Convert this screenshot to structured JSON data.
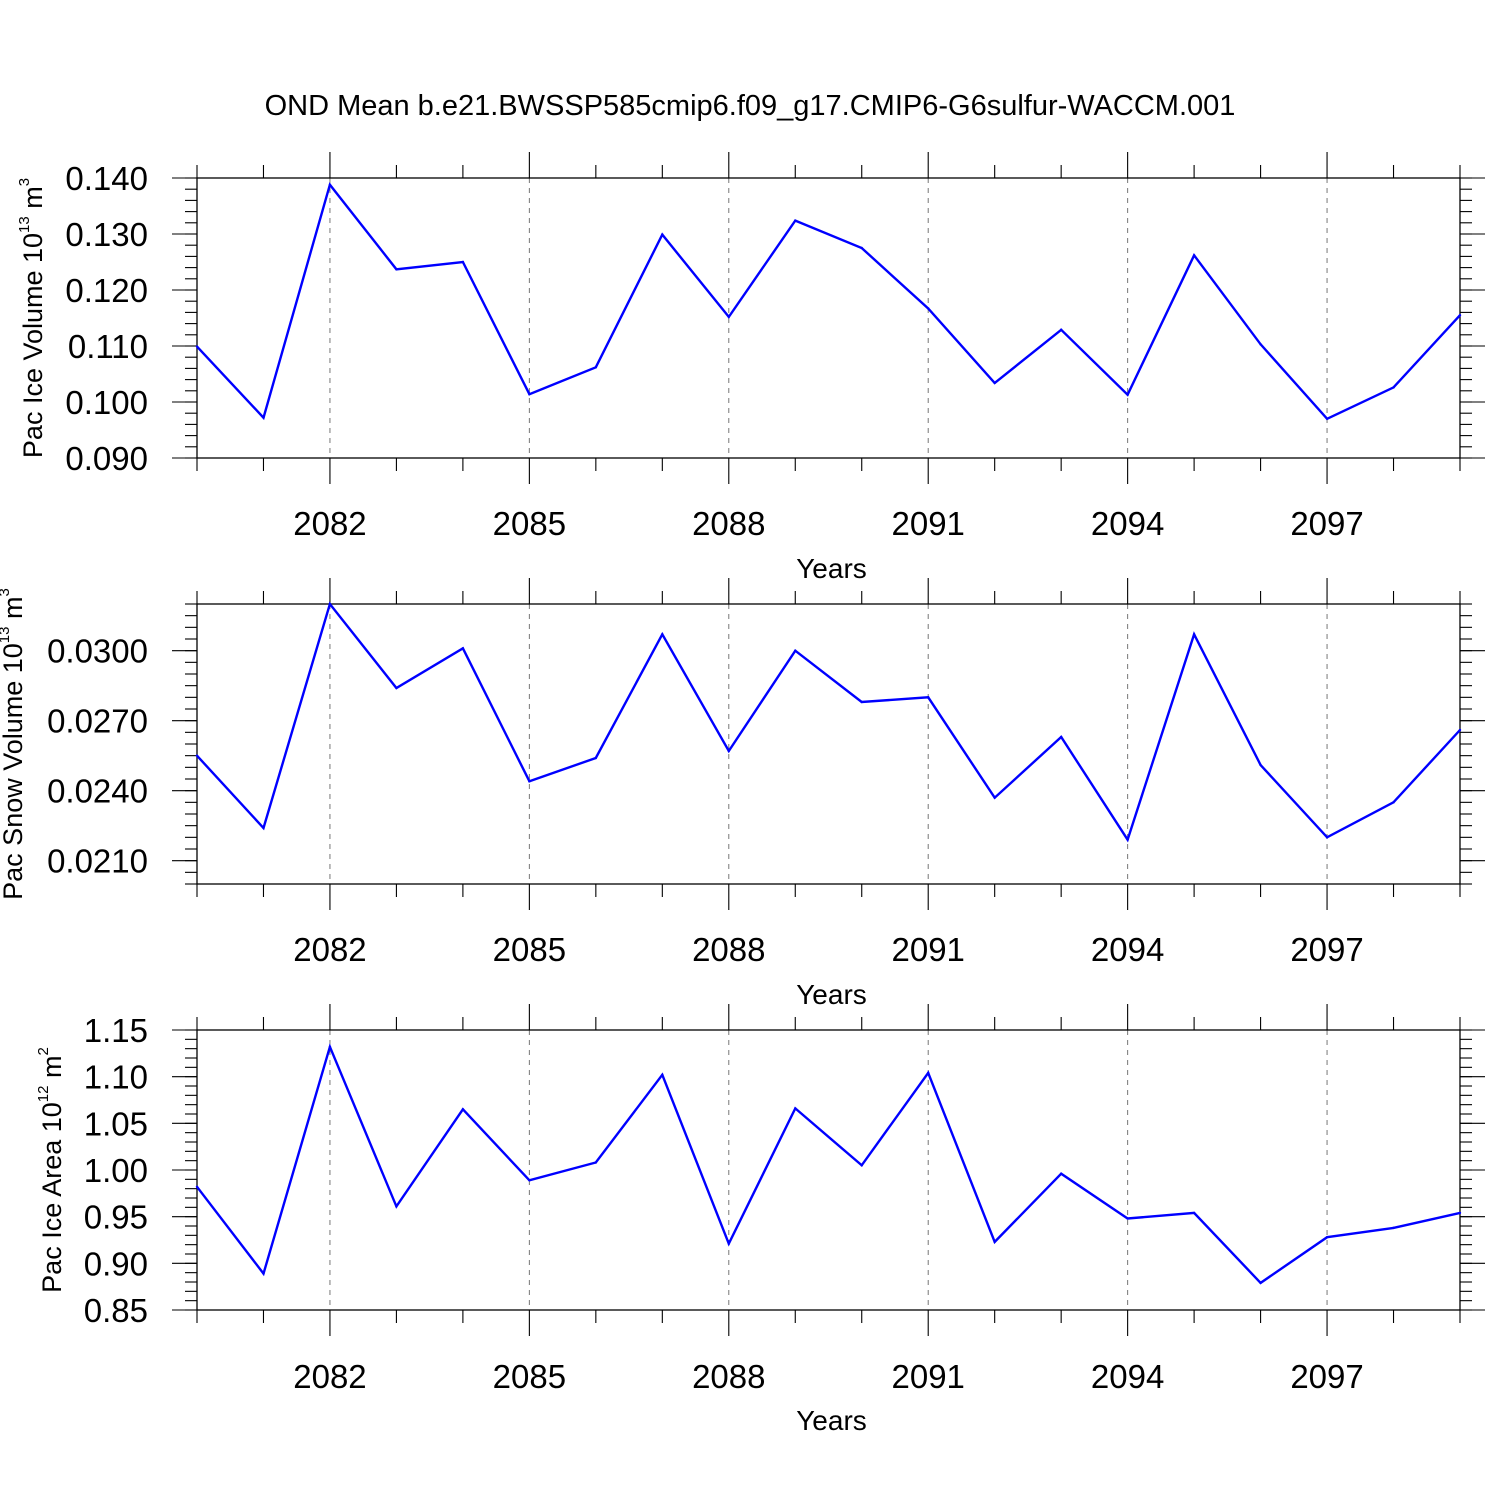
{
  "title": "OND Mean b.e21.BWSSP585cmip6.f09_g17.CMIP6-G6sulfur-WACCM.001",
  "colors": {
    "line": "#0000ff",
    "grid": "#777777",
    "axis": "#000000"
  },
  "chart_data": [
    {
      "type": "line",
      "xlabel": "Years",
      "ylabel": {
        "text": "Pac Ice Volume 10",
        "exp": "13",
        "unit": "m",
        "unit_exp": "3"
      },
      "x": [
        2080,
        2081,
        2082,
        2083,
        2084,
        2085,
        2086,
        2087,
        2088,
        2089,
        2090,
        2091,
        2092,
        2093,
        2094,
        2095,
        2096,
        2097,
        2098,
        2099
      ],
      "xlim": [
        2080,
        2099
      ],
      "xticks": [
        2082,
        2085,
        2088,
        2091,
        2094,
        2097
      ],
      "xtick_labels": [
        "2082",
        "2085",
        "2088",
        "2091",
        "2094",
        "2097"
      ],
      "ylim": [
        0.09,
        0.14
      ],
      "yticks": [
        0.09,
        0.1,
        0.11,
        0.12,
        0.13,
        0.14
      ],
      "ytick_labels": [
        "0.090",
        "0.100",
        "0.110",
        "0.120",
        "0.130",
        "0.140"
      ],
      "y_minor_step": 0.002,
      "grid": "vertical dashed at major x ticks",
      "values": [
        0.1099,
        0.0972,
        0.1388,
        0.1237,
        0.125,
        0.1014,
        0.1062,
        0.1299,
        0.1152,
        0.1324,
        0.1275,
        0.1167,
        0.1034,
        0.1129,
        0.1013,
        0.1262,
        0.1103,
        0.097,
        0.1026,
        0.1155
      ]
    },
    {
      "type": "line",
      "xlabel": "Years",
      "ylabel": {
        "text": "Pac Snow Volume 10",
        "exp": "13",
        "unit": "m",
        "unit_exp": "3"
      },
      "x": [
        2080,
        2081,
        2082,
        2083,
        2084,
        2085,
        2086,
        2087,
        2088,
        2089,
        2090,
        2091,
        2092,
        2093,
        2094,
        2095,
        2096,
        2097,
        2098,
        2099
      ],
      "xlim": [
        2080,
        2099
      ],
      "xticks": [
        2082,
        2085,
        2088,
        2091,
        2094,
        2097
      ],
      "xtick_labels": [
        "2082",
        "2085",
        "2088",
        "2091",
        "2094",
        "2097"
      ],
      "ylim": [
        0.02,
        0.032
      ],
      "yticks": [
        0.021,
        0.024,
        0.027,
        0.03
      ],
      "ytick_labels": [
        "0.0210",
        "0.0240",
        "0.0270",
        "0.0300"
      ],
      "y_minor_step": 0.0005,
      "grid": "vertical dashed at major x ticks",
      "values": [
        0.0255,
        0.0224,
        0.032,
        0.0284,
        0.0301,
        0.0244,
        0.0254,
        0.0307,
        0.0257,
        0.03,
        0.0278,
        0.028,
        0.0237,
        0.0263,
        0.0219,
        0.0307,
        0.0251,
        0.022,
        0.0235,
        0.0266
      ]
    },
    {
      "type": "line",
      "xlabel": "Years",
      "ylabel": {
        "text": "Pac Ice Area 10",
        "exp": "12",
        "unit": "m",
        "unit_exp": "2"
      },
      "x": [
        2080,
        2081,
        2082,
        2083,
        2084,
        2085,
        2086,
        2087,
        2088,
        2089,
        2090,
        2091,
        2092,
        2093,
        2094,
        2095,
        2096,
        2097,
        2098,
        2099
      ],
      "xlim": [
        2080,
        2099
      ],
      "xticks": [
        2082,
        2085,
        2088,
        2091,
        2094,
        2097
      ],
      "xtick_labels": [
        "2082",
        "2085",
        "2088",
        "2091",
        "2094",
        "2097"
      ],
      "ylim": [
        0.85,
        1.15
      ],
      "yticks": [
        0.85,
        0.9,
        0.95,
        1.0,
        1.05,
        1.1,
        1.15
      ],
      "ytick_labels": [
        "0.85",
        "0.90",
        "0.95",
        "1.00",
        "1.05",
        "1.10",
        "1.15"
      ],
      "y_minor_step": 0.01,
      "grid": "vertical dashed at major x ticks",
      "values": [
        0.982,
        0.889,
        1.132,
        0.961,
        1.065,
        0.989,
        1.008,
        1.102,
        0.921,
        1.066,
        1.005,
        1.104,
        0.923,
        0.996,
        0.948,
        0.954,
        0.879,
        0.928,
        0.938,
        0.954
      ]
    }
  ]
}
